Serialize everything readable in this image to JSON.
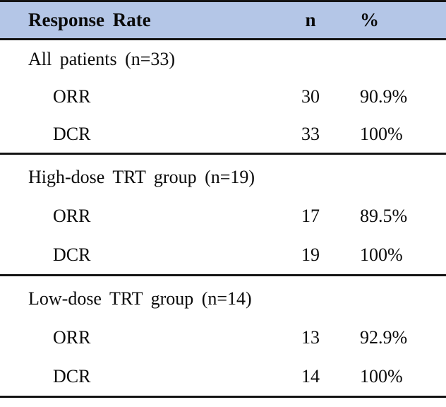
{
  "table": {
    "header": {
      "label": "Response Rate",
      "n": "n",
      "pct": "%"
    },
    "sections": [
      {
        "title": "All patients (n=33)",
        "rows": [
          {
            "label": "ORR",
            "n": "30",
            "pct": "90.9%"
          },
          {
            "label": "DCR",
            "n": "33",
            "pct": "100%"
          }
        ]
      },
      {
        "title": "High-dose TRT group (n=19)",
        "rows": [
          {
            "label": "ORR",
            "n": "17",
            "pct": "89.5%"
          },
          {
            "label": "DCR",
            "n": "19",
            "pct": "100%"
          }
        ]
      },
      {
        "title": "Low-dose TRT group (n=14)",
        "rows": [
          {
            "label": "ORR",
            "n": "13",
            "pct": "92.9%"
          },
          {
            "label": "DCR",
            "n": "14",
            "pct": "100%"
          }
        ]
      }
    ]
  },
  "colors": {
    "header_background": "#b4c6e7",
    "border": "#141414",
    "text": "#0a0a0a"
  }
}
